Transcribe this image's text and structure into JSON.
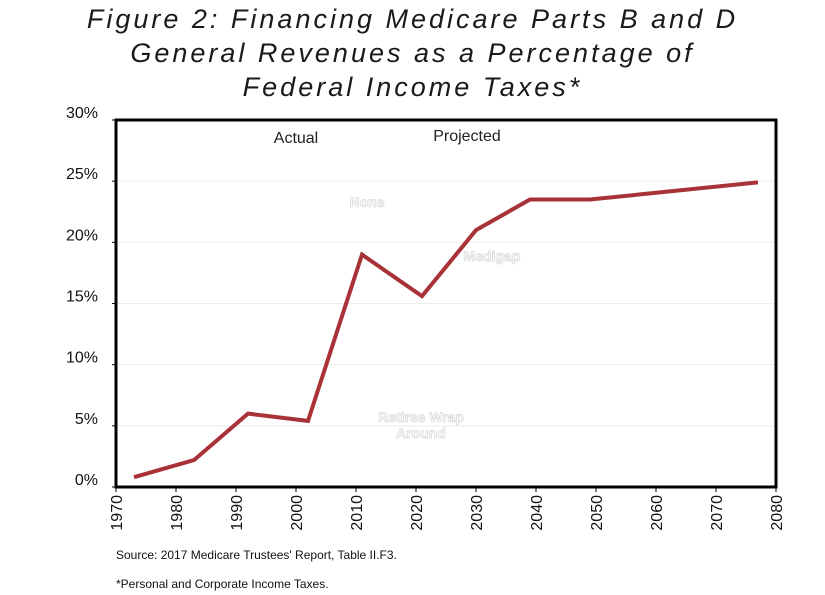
{
  "title_lines": [
    "Figure 2: Financing Medicare Parts B and D",
    "General Revenues as a Percentage of",
    "Federal Income Taxes*"
  ],
  "source": "Source:  2017 Medicare Trustees' Report, Table II.F3.",
  "footnote": "*Personal and Corporate Income Taxes.",
  "colors": {
    "line": "#A83238",
    "frame": "#000000"
  },
  "chart_data": {
    "type": "line",
    "x": [
      1973,
      1983,
      1992,
      2002,
      2011,
      2021,
      2030,
      2039,
      2049,
      2059,
      2069,
      2077
    ],
    "y": [
      0.8,
      2.2,
      6.0,
      5.4,
      19.0,
      15.6,
      21.0,
      23.5,
      23.5,
      24.0,
      24.5,
      24.9
    ],
    "xlim": [
      1970,
      2080
    ],
    "ylim": [
      0,
      30
    ],
    "x_ticks": [
      "1970",
      "1980",
      "1990",
      "2000",
      "2010",
      "2020",
      "2030",
      "2040",
      "2050",
      "2060",
      "2070",
      "2080"
    ],
    "y_ticks": [
      "0%",
      "5%",
      "10%",
      "15%",
      "20%",
      "25%",
      "30%"
    ],
    "annotations": [
      {
        "text": "Actual",
        "style": "normal"
      },
      {
        "text": "Projected",
        "style": "normal"
      },
      {
        "text": "None",
        "style": "faint"
      },
      {
        "text": "Medigap",
        "style": "faint"
      },
      {
        "text": "Retiree Wrap",
        "style": "faint"
      },
      {
        "text": "Around",
        "style": "faint"
      }
    ],
    "grid": true
  }
}
